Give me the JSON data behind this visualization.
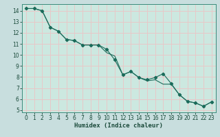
{
  "xlabel": "Humidex (Indice chaleur)",
  "xlim": [
    -0.5,
    23.5
  ],
  "ylim": [
    4.8,
    14.6
  ],
  "yticks": [
    5,
    6,
    7,
    8,
    9,
    10,
    11,
    12,
    13,
    14
  ],
  "xticks": [
    0,
    1,
    2,
    3,
    4,
    5,
    6,
    7,
    8,
    9,
    10,
    11,
    12,
    13,
    14,
    15,
    16,
    17,
    18,
    19,
    20,
    21,
    22,
    23
  ],
  "bg_outer": "#c8dede",
  "bg_inner": "#cce8e0",
  "grid_major_color": "#e8c8c8",
  "grid_minor_color": "#dde8e4",
  "line_color": "#1a6b5a",
  "line1_x": [
    0,
    1,
    2,
    3,
    4,
    5,
    6,
    7,
    8,
    9,
    10,
    11,
    12,
    13,
    14,
    15,
    16,
    17,
    18,
    19,
    20,
    21,
    22,
    23
  ],
  "line1_y": [
    14.2,
    14.2,
    14.0,
    12.5,
    12.15,
    11.4,
    11.3,
    10.9,
    10.9,
    10.9,
    10.5,
    9.55,
    8.2,
    8.5,
    7.95,
    7.75,
    7.95,
    8.3,
    7.4,
    6.4,
    5.8,
    5.65,
    5.35,
    5.75
  ],
  "line2_x": [
    0,
    1,
    2,
    3,
    4,
    5,
    6,
    7,
    8,
    9,
    10,
    11,
    12,
    13,
    14,
    15,
    16,
    17,
    18,
    19,
    20,
    21,
    22,
    23
  ],
  "line2_y": [
    14.2,
    14.2,
    14.0,
    12.5,
    12.15,
    11.4,
    11.3,
    10.9,
    10.9,
    10.9,
    10.2,
    9.9,
    8.2,
    8.5,
    7.95,
    7.65,
    7.75,
    7.35,
    7.35,
    6.4,
    5.8,
    5.65,
    5.35,
    5.75
  ],
  "tick_fontsize": 5.5,
  "xlabel_fontsize": 6.5,
  "tick_color": "#1a4a3a",
  "spine_color": "#3a8a7a"
}
